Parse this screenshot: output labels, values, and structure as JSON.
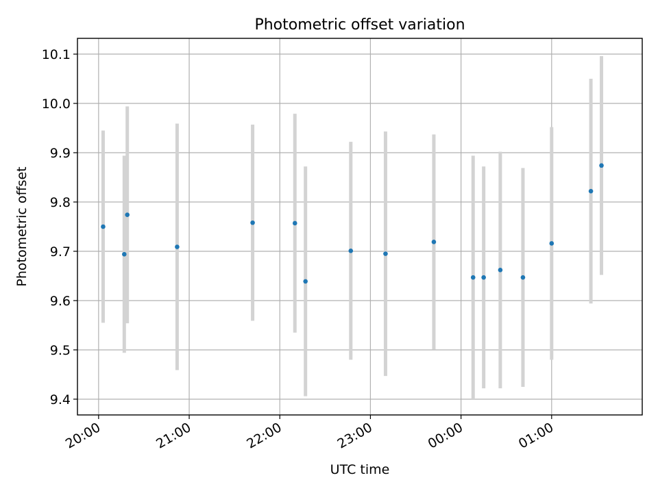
{
  "chart_data": {
    "type": "scatter",
    "title": "Photometric offset variation",
    "xlabel": "UTC time",
    "ylabel": "Photometric offset",
    "x_tick_labels": [
      "20:00",
      "21:00",
      "22:00",
      "23:00",
      "00:00",
      "01:00"
    ],
    "x_tick_minutes": [
      0,
      60,
      120,
      180,
      240,
      300
    ],
    "y_ticks": [
      9.4,
      9.5,
      9.6,
      9.7,
      9.8,
      9.9,
      10.0,
      10.1
    ],
    "y_tick_labels": [
      "9.4",
      "9.5",
      "9.6",
      "9.7",
      "9.8",
      "9.9",
      "10.0",
      "10.1"
    ],
    "xlim_minutes": [
      -14,
      360
    ],
    "ylim": [
      9.368,
      10.132
    ],
    "grid": true,
    "colors": {
      "marker": "#1f77b4",
      "errorbar": "#d3d3d3",
      "grid": "#b0b0b0"
    },
    "series": [
      {
        "x": [
          "20:03",
          "20:17",
          "20:19",
          "20:52",
          "21:42",
          "22:10",
          "22:17",
          "22:47",
          "23:10",
          "23:42",
          "00:08",
          "00:15",
          "00:26",
          "00:41",
          "01:00",
          "01:26",
          "01:33"
        ],
        "x_minutes": [
          3,
          17,
          19,
          52,
          102,
          130,
          137,
          167,
          190,
          222,
          248,
          255,
          266,
          281,
          300,
          326,
          333
        ],
        "y": [
          9.75,
          9.694,
          9.774,
          9.709,
          9.758,
          9.757,
          9.639,
          9.701,
          9.695,
          9.719,
          9.647,
          9.647,
          9.662,
          9.647,
          9.716,
          9.822,
          9.874
        ],
        "yerr": [
          0.195,
          0.2,
          0.22,
          0.25,
          0.199,
          0.222,
          0.233,
          0.221,
          0.248,
          0.218,
          0.247,
          0.225,
          0.24,
          0.222,
          0.236,
          0.228,
          0.222
        ]
      }
    ]
  }
}
